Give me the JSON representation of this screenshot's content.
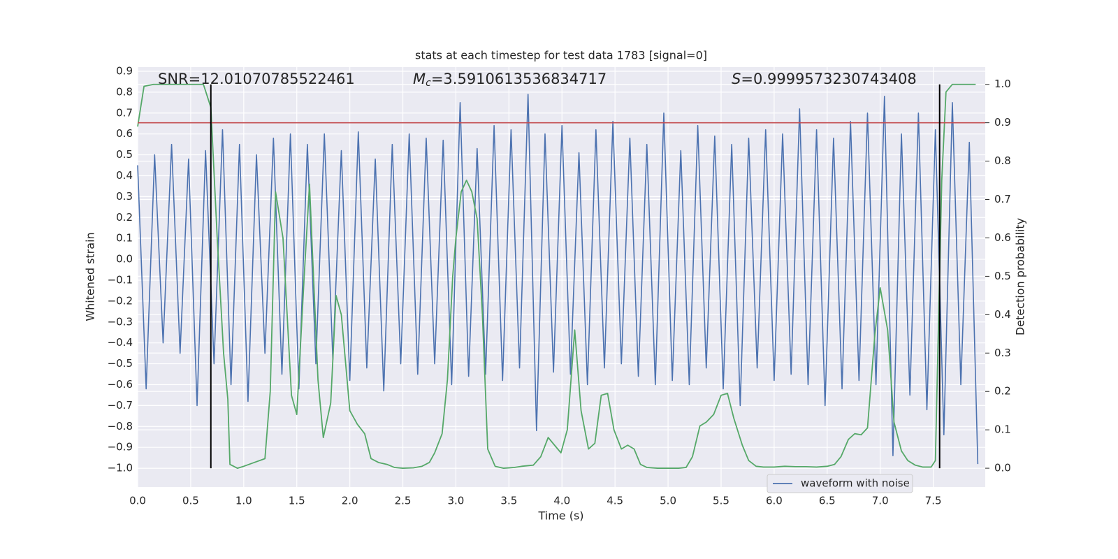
{
  "chart_data": {
    "type": "line",
    "title": "stats at each timestep for test data 1783 [signal=0]",
    "xlabel": "Time (s)",
    "ylabel": "Whitened strain",
    "y2label": "Detection probability",
    "xlim": [
      0,
      7.99
    ],
    "ylim": [
      -1.09,
      0.92
    ],
    "y2lim": [
      -0.049,
      1.045
    ],
    "xticks": [
      {
        "value": 0,
        "label": "0.0"
      },
      0.5,
      {
        "value": 1,
        "label": "1.0"
      },
      1.5,
      {
        "value": 2,
        "label": "2.0"
      },
      2.5,
      {
        "value": 3,
        "label": "3.0"
      },
      3.5,
      {
        "value": 4,
        "label": "4.0"
      },
      4.5,
      {
        "value": 5,
        "label": "5.0"
      },
      5.5,
      {
        "value": 6,
        "label": "6.0"
      },
      6.5,
      {
        "value": 7,
        "label": "7.0"
      },
      7.5
    ],
    "yticks": [
      0.9,
      0.8,
      0.7,
      0.6,
      0.5,
      0.4,
      0.3,
      0.2,
      0.1,
      {
        "value": 0,
        "label": "0.0"
      },
      {
        "value": -0.1,
        "label": "−0.1"
      },
      {
        "value": -0.2,
        "label": "−0.2"
      },
      {
        "value": -0.3,
        "label": "−0.3"
      },
      {
        "value": -0.4,
        "label": "−0.4"
      },
      {
        "value": -0.5,
        "label": "−0.5"
      },
      {
        "value": -0.6,
        "label": "−0.6"
      },
      {
        "value": -0.7,
        "label": "−0.7"
      },
      {
        "value": -0.8,
        "label": "−0.8"
      },
      {
        "value": -0.9,
        "label": "−0.9"
      },
      {
        "value": -1,
        "label": "−1.0"
      }
    ],
    "y2ticks": [
      {
        "value": 0,
        "label": "0.0"
      },
      0.1,
      0.2,
      0.3,
      0.4,
      0.5,
      0.6,
      0.7,
      0.8,
      0.9,
      {
        "value": 1,
        "label": "1.0"
      }
    ],
    "grid": true,
    "legend_loc": "lower right",
    "series": [
      {
        "name": "waveform with noise",
        "color": "#4c72b0",
        "x": [
          0,
          0.08,
          0.16,
          0.24,
          0.32,
          0.4,
          0.48,
          0.56,
          0.64,
          0.72,
          0.8,
          0.88,
          0.96,
          1.04,
          1.12,
          1.2,
          1.28,
          1.36,
          1.44,
          1.52,
          1.6,
          1.68,
          1.76,
          1.84,
          1.92,
          2,
          2.08,
          2.16,
          2.24,
          2.32,
          2.4,
          2.48,
          2.56,
          2.64,
          2.72,
          2.8,
          2.88,
          2.96,
          3.04,
          3.12,
          3.2,
          3.28,
          3.36,
          3.44,
          3.52,
          3.6,
          3.68,
          3.76,
          3.84,
          3.92,
          4,
          4.08,
          4.16,
          4.24,
          4.32,
          4.4,
          4.48,
          4.56,
          4.64,
          4.72,
          4.8,
          4.88,
          4.96,
          5.04,
          5.12,
          5.2,
          5.28,
          5.36,
          5.44,
          5.52,
          5.6,
          5.68,
          5.76,
          5.84,
          5.92,
          6,
          6.08,
          6.16,
          6.24,
          6.32,
          6.4,
          6.48,
          6.56,
          6.64,
          6.72,
          6.8,
          6.88,
          6.96,
          7.04,
          7.12,
          7.2,
          7.28,
          7.36,
          7.44,
          7.52,
          7.6,
          7.68,
          7.76,
          7.84,
          7.92
        ],
        "values": [
          0.45,
          -0.62,
          0.5,
          -0.4,
          0.55,
          -0.45,
          0.48,
          -0.7,
          0.52,
          -0.5,
          0.62,
          -0.6,
          0.55,
          -0.68,
          0.5,
          -0.45,
          0.58,
          -0.55,
          0.6,
          -0.62,
          0.55,
          -0.5,
          0.6,
          -0.48,
          0.52,
          -0.58,
          0.61,
          -0.52,
          0.48,
          -0.63,
          0.55,
          -0.5,
          0.6,
          -0.55,
          0.58,
          -0.5,
          0.57,
          -0.6,
          0.75,
          -0.56,
          0.53,
          -0.55,
          0.64,
          -0.58,
          0.62,
          -0.52,
          0.79,
          -0.82,
          0.6,
          -0.54,
          0.64,
          -0.55,
          0.51,
          -0.6,
          0.62,
          -0.52,
          0.66,
          -0.5,
          0.58,
          -0.56,
          0.55,
          -0.6,
          0.7,
          -0.58,
          0.52,
          -0.6,
          0.64,
          -0.52,
          0.59,
          -0.62,
          0.55,
          -0.7,
          0.58,
          -0.52,
          0.62,
          -0.58,
          0.6,
          -0.55,
          0.72,
          -0.6,
          0.62,
          -0.7,
          0.58,
          -0.62,
          0.66,
          -0.58,
          0.7,
          -0.6,
          0.78,
          -0.94,
          0.6,
          -0.65,
          0.7,
          -0.72,
          0.62,
          -0.84,
          0.75,
          -0.6,
          0.56,
          -0.98
        ]
      },
      {
        "color": "#55a868",
        "axis": "y2",
        "x": [
          0,
          0.06,
          0.15,
          0.3,
          0.45,
          0.62,
          0.69,
          0.75,
          0.81,
          0.85,
          0.87,
          0.94,
          1,
          1.1,
          1.2,
          1.25,
          1.3,
          1.37,
          1.45,
          1.5,
          1.57,
          1.62,
          1.7,
          1.75,
          1.82,
          1.87,
          1.92,
          2,
          2.07,
          2.14,
          2.2,
          2.27,
          2.35,
          2.42,
          2.5,
          2.6,
          2.68,
          2.75,
          2.8,
          2.87,
          2.92,
          2.97,
          3,
          3.05,
          3.1,
          3.15,
          3.2,
          3.25,
          3.3,
          3.37,
          3.45,
          3.55,
          3.62,
          3.73,
          3.8,
          3.87,
          3.93,
          3.99,
          4.05,
          4.12,
          4.18,
          4.25,
          4.31,
          4.37,
          4.43,
          4.49,
          4.56,
          4.62,
          4.68,
          4.74,
          4.8,
          4.9,
          5,
          5.1,
          5.17,
          5.23,
          5.3,
          5.36,
          5.43,
          5.5,
          5.56,
          5.62,
          5.7,
          5.76,
          5.83,
          5.9,
          6,
          6.1,
          6.2,
          6.3,
          6.4,
          6.5,
          6.57,
          6.63,
          6.7,
          6.76,
          6.82,
          6.88,
          6.95,
          7,
          7.07,
          7.13,
          7.2,
          7.26,
          7.33,
          7.4,
          7.48,
          7.52,
          7.58,
          7.62,
          7.68,
          7.75,
          7.9
        ],
        "values": [
          0.89,
          0.995,
          1,
          1,
          1,
          1,
          0.94,
          0.6,
          0.3,
          0.18,
          0.01,
          0,
          0.005,
          0.015,
          0.025,
          0.2,
          0.72,
          0.6,
          0.19,
          0.14,
          0.5,
          0.74,
          0.23,
          0.08,
          0.17,
          0.45,
          0.4,
          0.15,
          0.115,
          0.09,
          0.025,
          0.015,
          0.01,
          0.002,
          0,
          0.001,
          0.005,
          0.015,
          0.04,
          0.09,
          0.23,
          0.5,
          0.6,
          0.72,
          0.75,
          0.72,
          0.65,
          0.4,
          0.05,
          0.005,
          0,
          0.002,
          0.005,
          0.008,
          0.03,
          0.08,
          0.06,
          0.04,
          0.1,
          0.36,
          0.15,
          0.05,
          0.065,
          0.19,
          0.195,
          0.1,
          0.05,
          0.06,
          0.05,
          0.01,
          0.002,
          0,
          0,
          0,
          0.002,
          0.03,
          0.11,
          0.12,
          0.14,
          0.19,
          0.195,
          0.13,
          0.06,
          0.02,
          0.005,
          0.003,
          0.003,
          0.005,
          0.004,
          0.004,
          0.003,
          0.005,
          0.01,
          0.03,
          0.075,
          0.09,
          0.087,
          0.105,
          0.35,
          0.47,
          0.36,
          0.12,
          0.045,
          0.02,
          0.008,
          0.003,
          0.003,
          0.02,
          0.75,
          0.98,
          1,
          1,
          1
        ]
      }
    ],
    "hlines": [
      {
        "y2": 0.9,
        "color": "#c44e52"
      }
    ],
    "vlines": [
      {
        "x": 0.69,
        "y2": [
          0,
          1
        ],
        "color": "#000000"
      },
      {
        "x": 7.56,
        "y2": [
          0,
          1
        ],
        "color": "#000000"
      }
    ],
    "annotations": [
      {
        "text": "SNR=12.01070785522461"
      },
      {
        "symbol": "M",
        "subscript": "c",
        "text": "=3.5910613536834717"
      },
      {
        "symbol": "S",
        "text": "=0.9999573230743408"
      }
    ]
  }
}
